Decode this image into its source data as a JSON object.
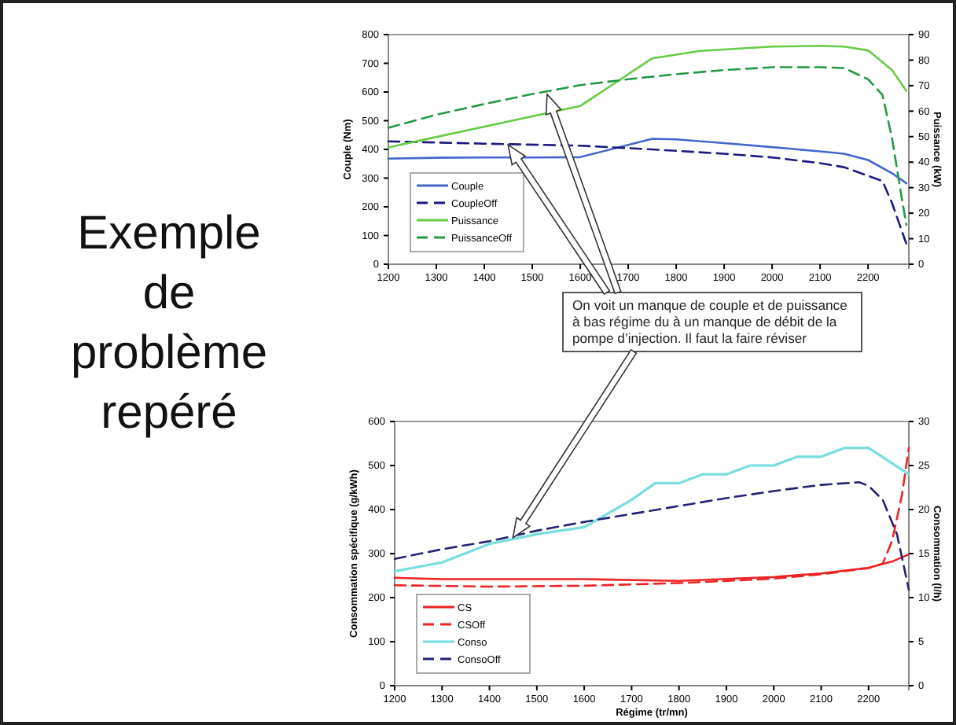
{
  "chart_data": [
    {
      "type": "other",
      "title": "Exemple de problème repéré"
    },
    {
      "type": "line",
      "ylabel": "Couple (Nm)",
      "y2label": "Puissance (kW)",
      "xlim": [
        1200,
        2285
      ],
      "xticks": [
        1200,
        1300,
        1400,
        1500,
        1600,
        1700,
        1800,
        1900,
        2000,
        2100,
        2200
      ],
      "ylim": [
        0,
        800
      ],
      "yticks": [
        0,
        100,
        200,
        300,
        400,
        500,
        600,
        700,
        800
      ],
      "y2lim": [
        0,
        90
      ],
      "y2ticks": [
        0,
        10,
        20,
        30,
        40,
        50,
        60,
        70,
        80,
        90
      ],
      "legend": "bottom left",
      "grid": false,
      "marker": "none",
      "annotations": [
        "On voit un manque de couple et de puissance à bas régime du à un manque de débit de la pompe d’injection. Il faut la faire réviser"
      ],
      "series": [
        {
          "name": "Couple",
          "color": "#4466cc",
          "line_style": "solid",
          "x": [
            1200,
            1300,
            1400,
            1500,
            1600,
            1750,
            1800,
            1900,
            2000,
            2100,
            2150,
            2200,
            2250,
            2280
          ],
          "values": [
            368,
            371,
            372,
            372,
            373,
            437,
            435,
            422,
            408,
            393,
            385,
            363,
            317,
            282
          ]
        },
        {
          "name": "CoupleOff",
          "color": "#1a1a80",
          "line_style": "dashed",
          "x": [
            1200,
            1400,
            1600,
            1750,
            1900,
            2000,
            2100,
            2150,
            2200,
            2230,
            2250,
            2280
          ],
          "values": [
            428,
            420,
            413,
            400,
            385,
            372,
            352,
            338,
            308,
            290,
            213,
            70
          ]
        },
        {
          "name": "Puissance",
          "color": "#66cc44",
          "axis": "y2",
          "line_style": "solid",
          "x": [
            1200,
            1600,
            1750,
            1850,
            2000,
            2100,
            2150,
            2200,
            2250,
            2280
          ],
          "values": [
            45.8,
            62.0,
            80.7,
            83.6,
            85.3,
            85.6,
            85.3,
            83.8,
            76.1,
            67.9
          ]
        },
        {
          "name": "PuissanceOff",
          "color": "#229944",
          "axis": "y2",
          "line_style": "dashed",
          "x": [
            1200,
            1300,
            1400,
            1500,
            1600,
            1700,
            1800,
            1900,
            2000,
            2100,
            2150,
            2200,
            2230,
            2250,
            2270,
            2280
          ],
          "values": [
            53.5,
            58.6,
            62.8,
            66.7,
            70.2,
            72.5,
            74.5,
            76.1,
            77.2,
            77.2,
            76.9,
            72.5,
            66.4,
            49.4,
            26.2,
            15.4
          ]
        }
      ]
    },
    {
      "type": "line",
      "xlabel": "Régime (tr/mn)",
      "ylabel": "Consommation spécifique (g/kWh)",
      "y2label": "Consommation (l/h)",
      "xlim": [
        1200,
        2285
      ],
      "xticks": [
        1200,
        1300,
        1400,
        1500,
        1600,
        1700,
        1800,
        1900,
        2000,
        2100,
        2200
      ],
      "ylim": [
        0,
        600
      ],
      "yticks": [
        0,
        100,
        200,
        300,
        400,
        500,
        600
      ],
      "y2lim": [
        0,
        30
      ],
      "y2ticks": [
        0,
        5,
        10,
        15,
        20,
        25,
        30
      ],
      "legend": "bottom left",
      "grid": false,
      "marker": "none",
      "series": [
        {
          "name": "CS",
          "color": "#ee2222",
          "line_style": "solid",
          "x": [
            1200,
            1300,
            1600,
            1800,
            2000,
            2100,
            2200,
            2250,
            2285
          ],
          "values": [
            245,
            242,
            242,
            238,
            247,
            255,
            268,
            282,
            298
          ]
        },
        {
          "name": "CSOff",
          "color": "#ee2222",
          "line_style": "dashed",
          "x": [
            1200,
            1400,
            1600,
            1800,
            2000,
            2100,
            2200,
            2230,
            2250,
            2270,
            2285
          ],
          "values": [
            228,
            225,
            227,
            233,
            243,
            253,
            267,
            277,
            330,
            430,
            540
          ]
        },
        {
          "name": "Conso",
          "color": "#77dddd",
          "axis": "y2",
          "line_style": "solid",
          "x": [
            1200,
            1300,
            1400,
            1500,
            1600,
            1700,
            1750,
            1800,
            1850,
            1900,
            1950,
            2000,
            2050,
            2100,
            2150,
            2200,
            2285
          ],
          "values": [
            13.0,
            14.0,
            16.1,
            17.2,
            18.0,
            21.1,
            23.0,
            23.0,
            24.0,
            24.0,
            25.0,
            25.0,
            26.0,
            26.0,
            27.0,
            27.0,
            24.0
          ]
        },
        {
          "name": "ConsoOff",
          "color": "#222277",
          "axis": "y2",
          "line_style": "dashed",
          "x": [
            1200,
            1300,
            1400,
            1500,
            1600,
            1700,
            1800,
            1900,
            2000,
            2100,
            2180,
            2200,
            2230,
            2260,
            2285
          ],
          "values": [
            14.4,
            15.5,
            16.4,
            17.6,
            18.6,
            19.5,
            20.4,
            21.3,
            22.1,
            22.8,
            23.1,
            22.7,
            21.1,
            17.2,
            10.9
          ]
        }
      ]
    }
  ]
}
